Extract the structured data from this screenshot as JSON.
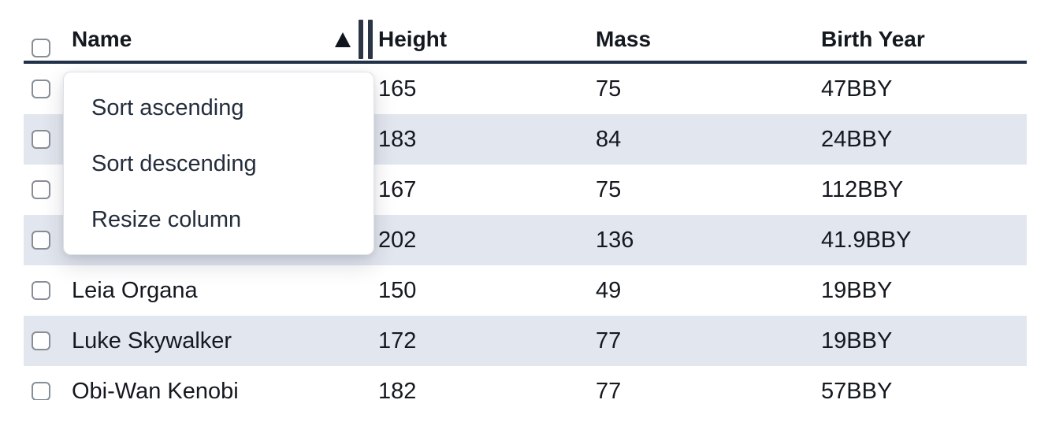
{
  "table": {
    "select_all": {
      "checked": false
    },
    "columns": [
      {
        "id": "name",
        "label": "Name",
        "sorted": "ascending",
        "sort_icon": "triangle-up-icon",
        "resize_icon": "resize-handle-icon"
      },
      {
        "id": "height",
        "label": "Height"
      },
      {
        "id": "mass",
        "label": "Mass"
      },
      {
        "id": "birth_year",
        "label": "Birth Year"
      }
    ],
    "rows": [
      {
        "name": "",
        "height": "165",
        "mass": "75",
        "birth_year": "47BBY",
        "checked": false
      },
      {
        "name": "",
        "height": "183",
        "mass": "84",
        "birth_year": "24BBY",
        "checked": false
      },
      {
        "name": "",
        "height": "167",
        "mass": "75",
        "birth_year": "112BBY",
        "checked": false
      },
      {
        "name": "",
        "height": "202",
        "mass": "136",
        "birth_year": "41.9BBY",
        "checked": false
      },
      {
        "name": "Leia Organa",
        "height": "150",
        "mass": "49",
        "birth_year": "19BBY",
        "checked": false
      },
      {
        "name": "Luke Skywalker",
        "height": "172",
        "mass": "77",
        "birth_year": "19BBY",
        "checked": false
      },
      {
        "name": "Obi-Wan Kenobi",
        "height": "182",
        "mass": "77",
        "birth_year": "57BBY",
        "checked": false
      }
    ]
  },
  "context_menu": {
    "items": [
      {
        "label": "Sort ascending"
      },
      {
        "label": "Sort descending"
      },
      {
        "label": "Resize column"
      }
    ]
  },
  "colors": {
    "stripe": "#e2e6ee",
    "header_border": "#22304a",
    "icon": "#2b3546",
    "icon_dark": "#10151d",
    "text": "#14181f",
    "menu_text": "#242d3b",
    "menu_border": "#dde1e6",
    "checkbox_border": "#878e97"
  }
}
